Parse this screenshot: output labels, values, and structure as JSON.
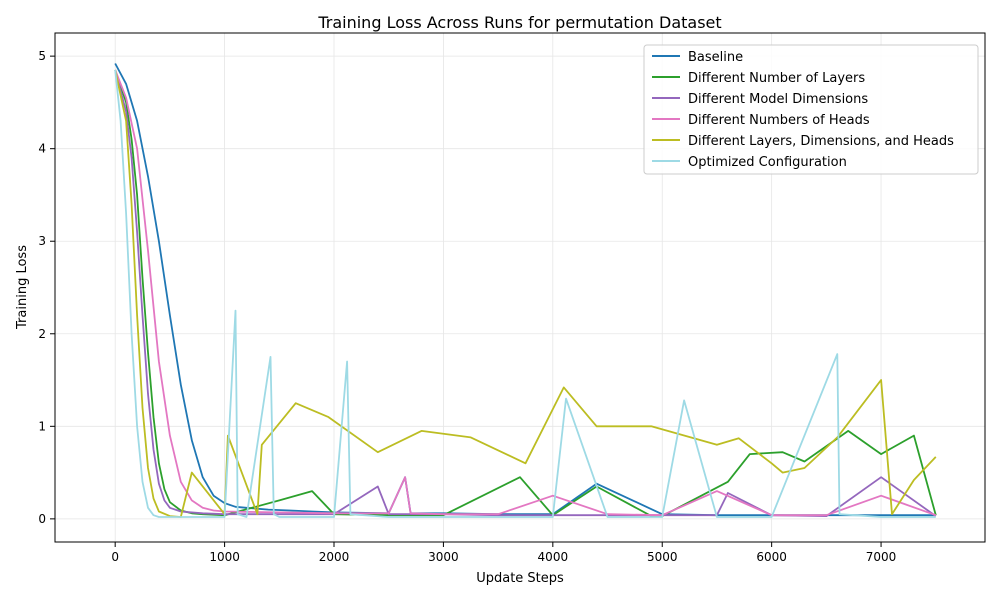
{
  "chart_data": {
    "type": "line",
    "title": "Training Loss Across Runs for permutation Dataset",
    "xlabel": "Update Steps",
    "ylabel": "Training Loss",
    "xlim": [
      -550,
      7950
    ],
    "ylim": [
      -0.25,
      5.25
    ],
    "xticks": [
      0,
      1000,
      2000,
      3000,
      4000,
      5000,
      6000,
      7000
    ],
    "yticks": [
      0,
      1,
      2,
      3,
      4,
      5
    ],
    "grid": true,
    "legend_position": "top-right",
    "series": [
      {
        "name": "Baseline",
        "color": "#1f77b4",
        "x": [
          0,
          100,
          200,
          300,
          400,
          500,
          600,
          700,
          800,
          900,
          1000,
          1100,
          1200,
          1400,
          1600,
          1800,
          2000,
          2500,
          2650,
          2700,
          3000,
          3500,
          4000,
          4400,
          5000,
          5500,
          6000,
          6500,
          7000,
          7500
        ],
        "y": [
          4.92,
          4.7,
          4.3,
          3.7,
          3.0,
          2.2,
          1.45,
          0.85,
          0.45,
          0.25,
          0.17,
          0.13,
          0.12,
          0.1,
          0.09,
          0.08,
          0.07,
          0.06,
          0.45,
          0.06,
          0.06,
          0.05,
          0.05,
          0.38,
          0.05,
          0.04,
          0.04,
          0.04,
          0.04,
          0.04
        ]
      },
      {
        "name": "Different Number of Layers",
        "color": "#2ca02c",
        "x": [
          0,
          100,
          150,
          200,
          250,
          300,
          350,
          400,
          450,
          500,
          600,
          700,
          800,
          1000,
          1500,
          1800,
          2000,
          2500,
          3000,
          3700,
          4000,
          4400,
          4900,
          5000,
          5600,
          5800,
          6100,
          6300,
          6700,
          7000,
          7300,
          7500
        ],
        "y": [
          4.85,
          4.5,
          4.1,
          3.5,
          2.6,
          1.8,
          1.1,
          0.6,
          0.32,
          0.18,
          0.09,
          0.06,
          0.05,
          0.04,
          0.2,
          0.3,
          0.05,
          0.04,
          0.04,
          0.45,
          0.04,
          0.35,
          0.03,
          0.03,
          0.4,
          0.7,
          0.72,
          0.62,
          0.95,
          0.7,
          0.9,
          0.04
        ]
      },
      {
        "name": "Different Model Dimensions",
        "color": "#9467bd",
        "x": [
          0,
          100,
          150,
          200,
          250,
          300,
          350,
          400,
          450,
          500,
          600,
          800,
          1000,
          1500,
          2000,
          2400,
          2500,
          3000,
          3500,
          4000,
          4500,
          5000,
          5500,
          5600,
          6000,
          6500,
          7000,
          7500
        ],
        "y": [
          4.85,
          4.4,
          3.9,
          3.1,
          2.2,
          1.35,
          0.75,
          0.38,
          0.2,
          0.12,
          0.08,
          0.06,
          0.05,
          0.05,
          0.05,
          0.35,
          0.05,
          0.05,
          0.04,
          0.04,
          0.04,
          0.04,
          0.04,
          0.28,
          0.04,
          0.03,
          0.45,
          0.03
        ]
      },
      {
        "name": "Different Numbers of Heads",
        "color": "#e377c2",
        "x": [
          0,
          100,
          200,
          300,
          400,
          500,
          600,
          700,
          800,
          900,
          1000,
          1500,
          2000,
          2500,
          2650,
          2700,
          3000,
          3500,
          4000,
          4500,
          5000,
          5500,
          6000,
          6500,
          7000,
          7500
        ],
        "y": [
          4.85,
          4.55,
          4.0,
          2.9,
          1.7,
          0.9,
          0.4,
          0.2,
          0.12,
          0.09,
          0.08,
          0.07,
          0.06,
          0.06,
          0.45,
          0.06,
          0.05,
          0.05,
          0.25,
          0.05,
          0.04,
          0.3,
          0.04,
          0.04,
          0.25,
          0.04
        ]
      },
      {
        "name": "Different Layers, Dimensions, and Heads",
        "color": "#bcbd22",
        "x": [
          0,
          100,
          150,
          200,
          250,
          300,
          350,
          400,
          500,
          600,
          700,
          1000,
          1030,
          1300,
          1340,
          1650,
          1950,
          2400,
          2800,
          3250,
          3750,
          4100,
          4400,
          4900,
          5500,
          5700,
          6000,
          6100,
          6300,
          6600,
          7000,
          7100,
          7300,
          7500
        ],
        "y": [
          4.85,
          4.3,
          3.4,
          2.2,
          1.2,
          0.55,
          0.22,
          0.08,
          0.03,
          0.02,
          0.5,
          0.05,
          0.9,
          0.05,
          0.8,
          1.25,
          1.1,
          0.72,
          0.95,
          0.88,
          0.6,
          1.42,
          1.0,
          1.0,
          0.8,
          0.87,
          0.6,
          0.5,
          0.55,
          0.88,
          1.5,
          0.05,
          0.42,
          0.67
        ]
      },
      {
        "name": "Optimized Configuration",
        "color": "#9edae5",
        "x": [
          0,
          50,
          100,
          150,
          200,
          250,
          300,
          350,
          400,
          450,
          500,
          1000,
          1100,
          1120,
          1200,
          1420,
          1450,
          1500,
          2000,
          2120,
          2150,
          2500,
          3000,
          3500,
          4000,
          4120,
          4500,
          5000,
          5200,
          5500,
          6000,
          6600,
          6620,
          7000,
          7500
        ],
        "y": [
          4.85,
          4.3,
          3.3,
          2.0,
          1.0,
          0.4,
          0.12,
          0.04,
          0.02,
          0.02,
          0.02,
          0.02,
          2.25,
          0.05,
          0.02,
          1.75,
          0.05,
          0.02,
          0.02,
          1.7,
          0.05,
          0.02,
          0.02,
          0.02,
          0.02,
          1.3,
          0.02,
          0.02,
          1.28,
          0.02,
          0.02,
          1.78,
          0.05,
          0.02,
          0.02
        ]
      }
    ]
  }
}
